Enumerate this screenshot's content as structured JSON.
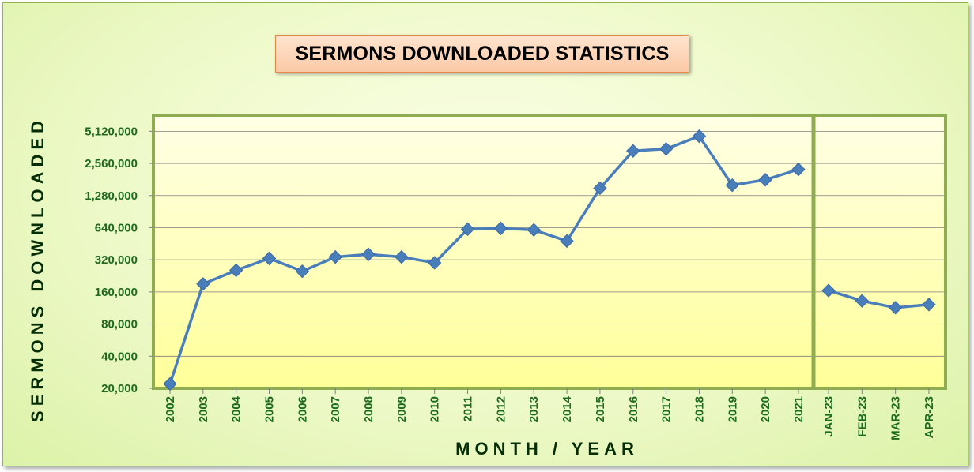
{
  "chart_data": {
    "type": "line",
    "title": "SERMONS DOWNLOADED STATISTICS",
    "xlabel": "MONTH / YEAR",
    "ylabel": "SERMONS DOWNLOADED",
    "y_scale": "log2",
    "ylim": [
      20000,
      7240000
    ],
    "grid": true,
    "legend": "none",
    "y_ticks": [
      "20,000",
      "40,000",
      "80,000",
      "160,000",
      "320,000",
      "640,000",
      "1,280,000",
      "2,560,000",
      "5,120,000"
    ],
    "y_tick_values": [
      20000,
      40000,
      80000,
      160000,
      320000,
      640000,
      1280000,
      2560000,
      5120000
    ],
    "panels": [
      {
        "categories": [
          "2002",
          "2003",
          "2004",
          "2005",
          "2006",
          "2007",
          "2008",
          "2009",
          "2010",
          "2011",
          "2012",
          "2013",
          "2014",
          "2015",
          "2016",
          "2017",
          "2018",
          "2019",
          "2020",
          "2021"
        ],
        "values": [
          22000,
          190000,
          255000,
          330000,
          250000,
          340000,
          360000,
          340000,
          300000,
          620000,
          630000,
          610000,
          480000,
          1500000,
          3350000,
          3500000,
          4600000,
          1600000,
          1800000,
          2250000
        ]
      },
      {
        "categories": [
          "JAN-23",
          "FEB-23",
          "MAR-23",
          "APR-23"
        ],
        "values": [
          165000,
          132000,
          114000,
          122000
        ]
      }
    ],
    "colors": {
      "line": "#4a7ebb",
      "marker": "#4a7ebb",
      "tick_text": "#1e6a1e",
      "axis_title": "#062e06",
      "plot_bg": "#ffffcc",
      "plot_border": "#8fad50"
    }
  }
}
